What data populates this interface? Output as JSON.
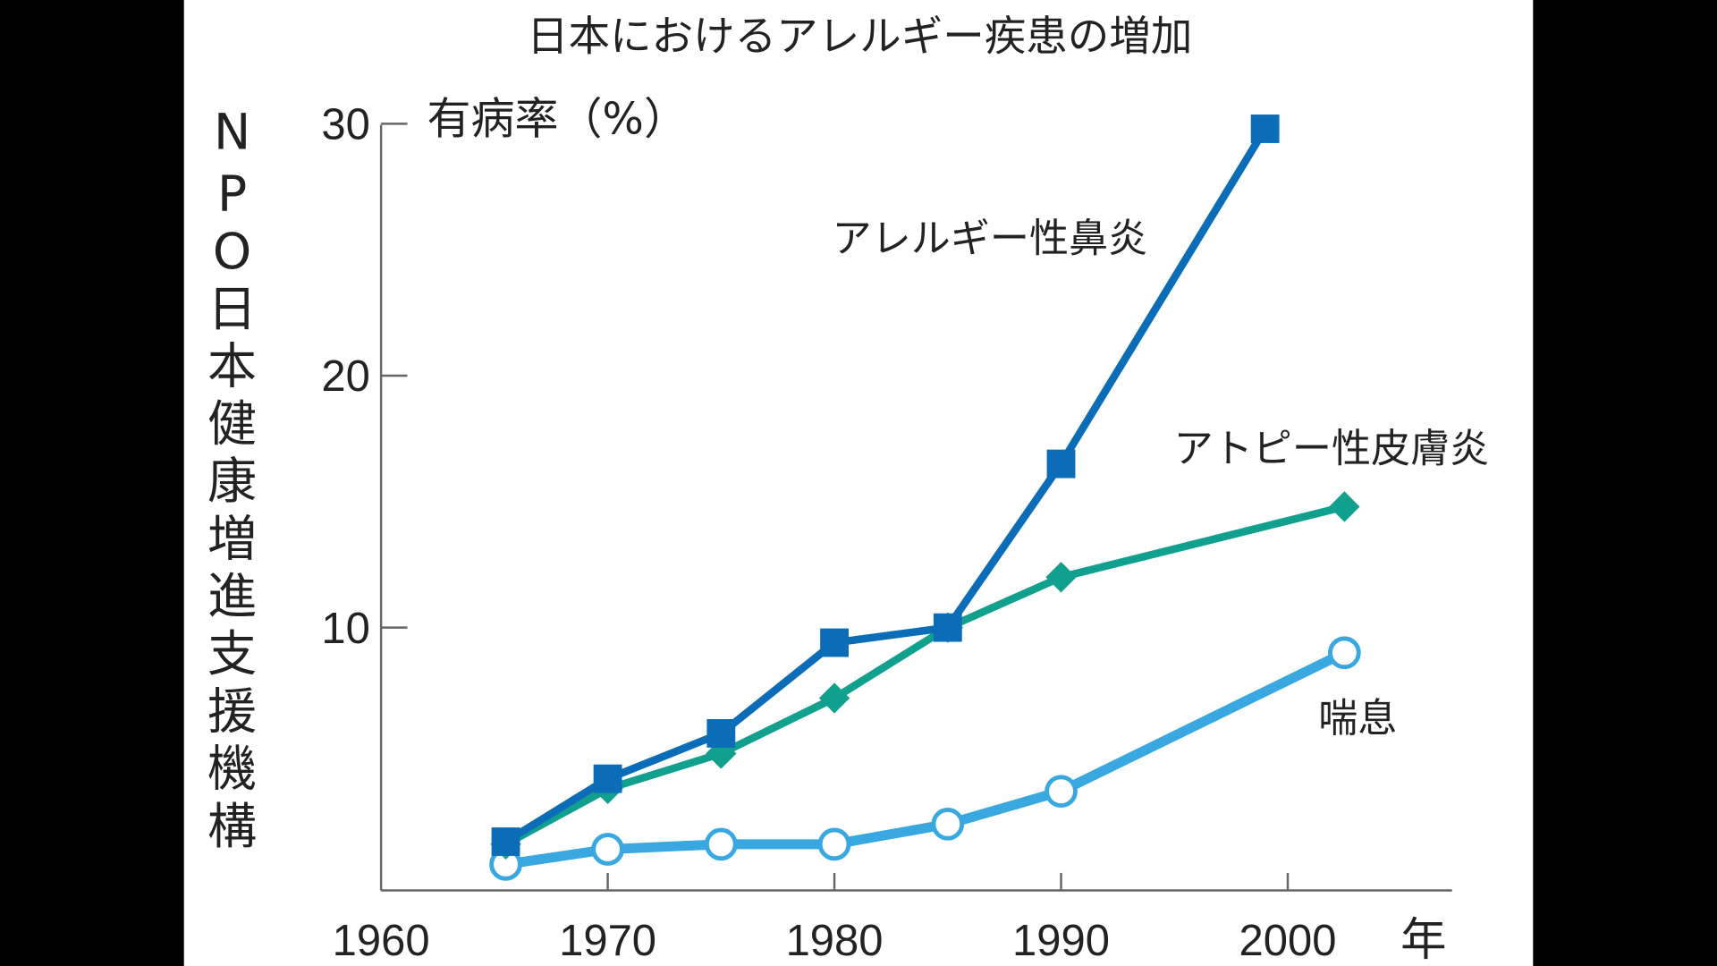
{
  "chart_data": {
    "type": "line",
    "title": "日本におけるアレルギー疾患の増加",
    "ylabel": "有病率（%）",
    "xlabel": "年",
    "source": "NPO日本健康増進支援機構",
    "xlim": [
      1960,
      2007
    ],
    "ylim": [
      0,
      30
    ],
    "x_ticks": [
      "1960",
      "1970",
      "1980",
      "1990",
      "2000"
    ],
    "x_tick_values": [
      1960,
      1970,
      1980,
      1990,
      2000
    ],
    "y_ticks": [
      "10",
      "20",
      "30"
    ],
    "y_tick_values": [
      10,
      20,
      30
    ],
    "grid": false,
    "series": [
      {
        "name": "アレルギー性鼻炎",
        "color": "#0b6cb8",
        "marker": "square",
        "x": [
          1965.5,
          1970,
          1975,
          1980,
          1985,
          1990,
          1999
        ],
        "values": [
          1.5,
          4.0,
          5.8,
          9.4,
          10.0,
          16.5,
          29.8
        ]
      },
      {
        "name": "アトピー性皮膚炎",
        "color": "#12a08e",
        "marker": "diamond",
        "x": [
          1965.5,
          1970,
          1975,
          1980,
          1985,
          1990,
          2002.5
        ],
        "values": [
          1.4,
          3.6,
          5.0,
          7.2,
          10.0,
          12.0,
          14.8
        ]
      },
      {
        "name": "喘息",
        "color": "#3aa8e0",
        "marker": "open-circle",
        "x": [
          1965.5,
          1970,
          1975,
          1980,
          1985,
          1990,
          2002.5
        ],
        "values": [
          0.6,
          1.2,
          1.4,
          1.4,
          2.2,
          3.5,
          9.0
        ]
      }
    ]
  }
}
